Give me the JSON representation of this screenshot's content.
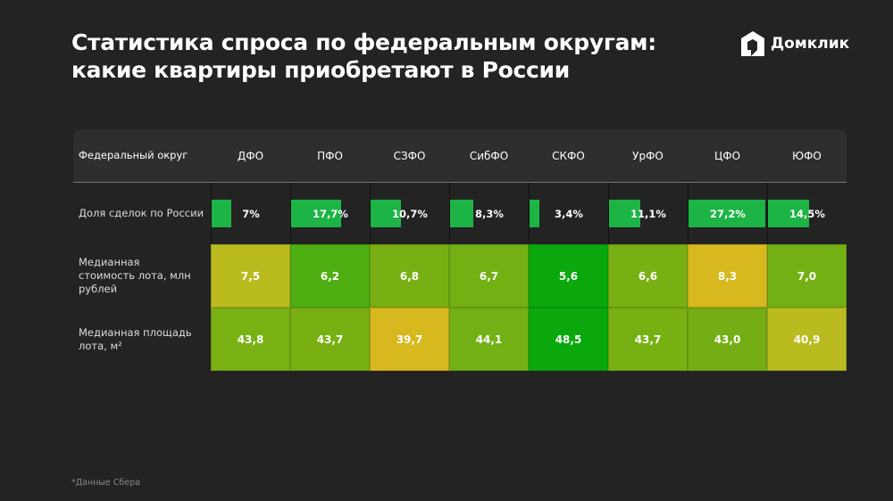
{
  "title_line1": "Статистика спроса по федеральным округам:",
  "title_line2": "какие квартиры приобретают в России",
  "logo": {
    "text": "Домклик",
    "icon": "house-logo-icon"
  },
  "footnote": "*Данные Сбера",
  "chart_data": {
    "type": "table",
    "header_label": "Федеральный округ",
    "categories": [
      "ДФО",
      "ПФО",
      "СЗФО",
      "СибФО",
      "СКФО",
      "УрФО",
      "ЦФО",
      "ЮФО"
    ],
    "rows": [
      {
        "label": "Доля сделок по России",
        "kind": "bar",
        "values": [
          7,
          17.7,
          10.7,
          8.3,
          3.4,
          11.1,
          27.2,
          14.5
        ],
        "display": [
          "7%",
          "17,7%",
          "10,7%",
          "8,3%",
          "3,4%",
          "11,1%",
          "27,2%",
          "14,5%"
        ],
        "bar_color": "#1db446"
      },
      {
        "label": "Медианная стоимость лота, млн рублей",
        "kind": "heatmap",
        "values": [
          7.5,
          6.2,
          6.8,
          6.7,
          5.6,
          6.6,
          8.3,
          7.0
        ],
        "display": [
          "7,5",
          "6,2",
          "6,8",
          "6,7",
          "5,6",
          "6,6",
          "8,3",
          "7,0"
        ],
        "colors": [
          "#b9bb1e",
          "#4fae12",
          "#78b013",
          "#72b014",
          "#0aa80d",
          "#78b014",
          "#d7b81e",
          "#73b014"
        ]
      },
      {
        "label": "Медианная площадь лота, м²",
        "kind": "heatmap",
        "values": [
          43.8,
          43.7,
          39.7,
          44.1,
          48.5,
          43.7,
          43.0,
          40.9
        ],
        "display": [
          "43,8",
          "43,7",
          "39,7",
          "44,1",
          "48,5",
          "43,7",
          "43,0",
          "40,9"
        ],
        "colors": [
          "#79b114",
          "#78b014",
          "#d7b81e",
          "#72b015",
          "#0aa80d",
          "#78b014",
          "#75ae14",
          "#b9bb1f"
        ]
      }
    ]
  }
}
